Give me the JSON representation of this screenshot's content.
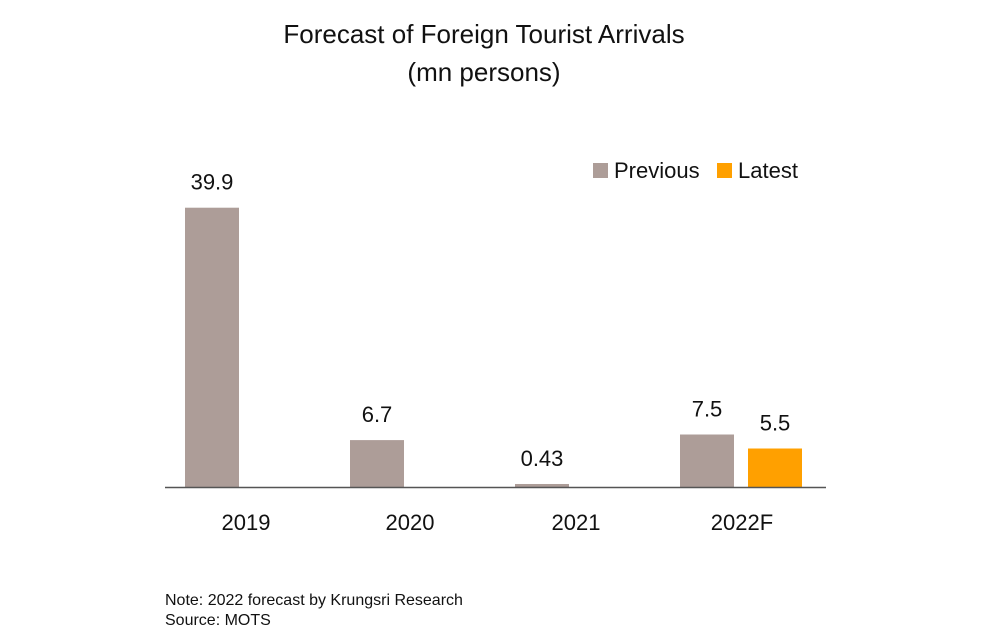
{
  "title_line1": "Forecast of Foreign Tourist Arrivals",
  "title_line2": "(mn persons)",
  "note": "Note: 2022 forecast by Krungsri Research",
  "source": "Source: MOTS",
  "colors": {
    "previous": "#AD9D98",
    "latest": "#FFA000",
    "axis": "#555555"
  },
  "chart_data": {
    "type": "bar",
    "title": "Forecast of Foreign Tourist Arrivals",
    "subtitle": "(mn persons)",
    "categories": [
      "2019",
      "2020",
      "2021",
      "2022F"
    ],
    "series": [
      {
        "name": "Previous",
        "values": [
          39.9,
          6.7,
          0.43,
          7.5
        ],
        "labels": [
          "39.9",
          "6.7",
          "0.43",
          "7.5"
        ]
      },
      {
        "name": "Latest",
        "values": [
          null,
          null,
          null,
          5.5
        ],
        "labels": [
          null,
          null,
          null,
          "5.5"
        ]
      }
    ],
    "ylim": [
      0,
      40
    ],
    "grid": false,
    "legend": "top-right",
    "xlabel": "",
    "ylabel": ""
  }
}
